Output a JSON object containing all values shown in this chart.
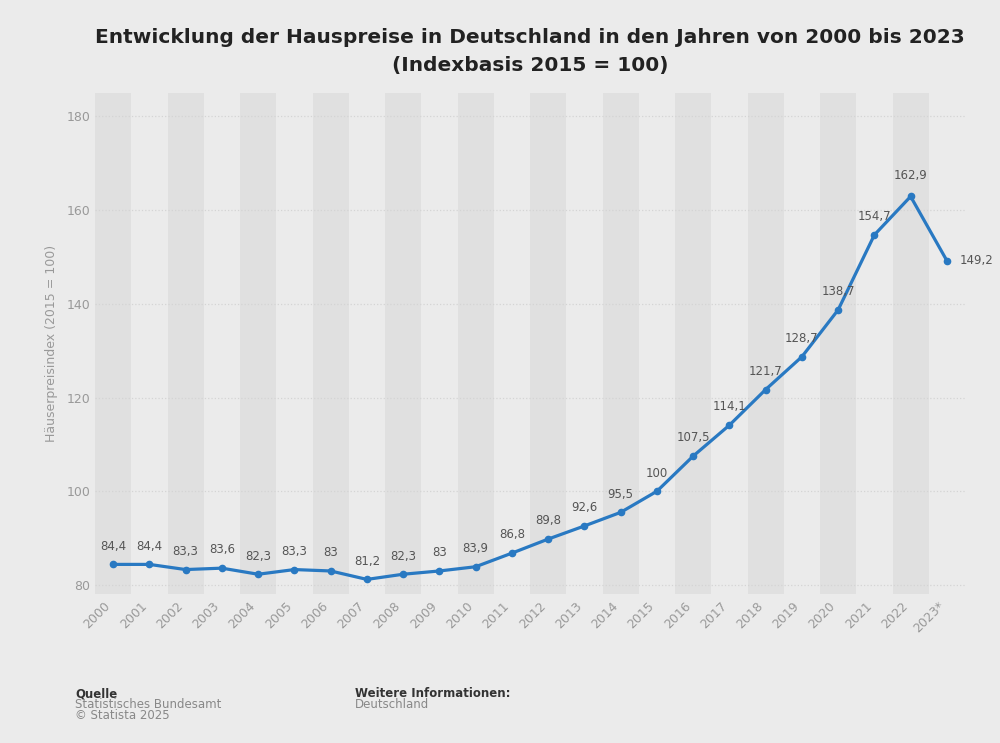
{
  "title_line1": "Entwicklung der Hauspreise in Deutschland in den Jahren von 2000 bis 2023",
  "title_line2": "(Indexbasis 2015 = 100)",
  "years": [
    "2000",
    "2001",
    "2002",
    "2003",
    "2004",
    "2005",
    "2006",
    "2007",
    "2008",
    "2009",
    "2010",
    "2011",
    "2012",
    "2013",
    "2014",
    "2015",
    "2016",
    "2017",
    "2018",
    "2019",
    "2020",
    "2021",
    "2022",
    "2023*"
  ],
  "values": [
    84.4,
    84.4,
    83.3,
    83.6,
    82.3,
    83.3,
    83.0,
    81.2,
    82.3,
    83.0,
    83.9,
    86.8,
    89.8,
    92.6,
    95.5,
    100.0,
    107.5,
    114.1,
    121.7,
    128.7,
    138.7,
    154.7,
    162.9,
    149.2
  ],
  "value_labels": [
    "84,4",
    "84,4",
    "83,3",
    "83,6",
    "82,3",
    "83,3",
    "83",
    "81,2",
    "82,3",
    "83",
    "83,9",
    "86,8",
    "89,8",
    "92,6",
    "95,5",
    "100",
    "107,5",
    "114,1",
    "121,7",
    "128,7",
    "138,7",
    "154,7",
    "162,9",
    "149,2"
  ],
  "line_color": "#2979C2",
  "marker_color": "#2979C2",
  "bg_color": "#ebebeb",
  "plot_bg_color": "#ebebeb",
  "col_stripe_light": "#ebebeb",
  "col_stripe_dark": "#e0e0e0",
  "grid_color": "#d4d4d4",
  "ylabel": "Häuserpreisindex (2015 = 100)",
  "ylim": [
    78,
    185
  ],
  "yticks": [
    80,
    100,
    120,
    140,
    160,
    180
  ],
  "source_bold": "Quelle",
  "source_line1": "Statistisches Bundesamt",
  "source_line2": "© Statista 2025",
  "info_bold": "Weitere Informationen:",
  "info_text": "Deutschland",
  "title_fontsize": 14.5,
  "label_fontsize": 8.5,
  "tick_fontsize": 9
}
